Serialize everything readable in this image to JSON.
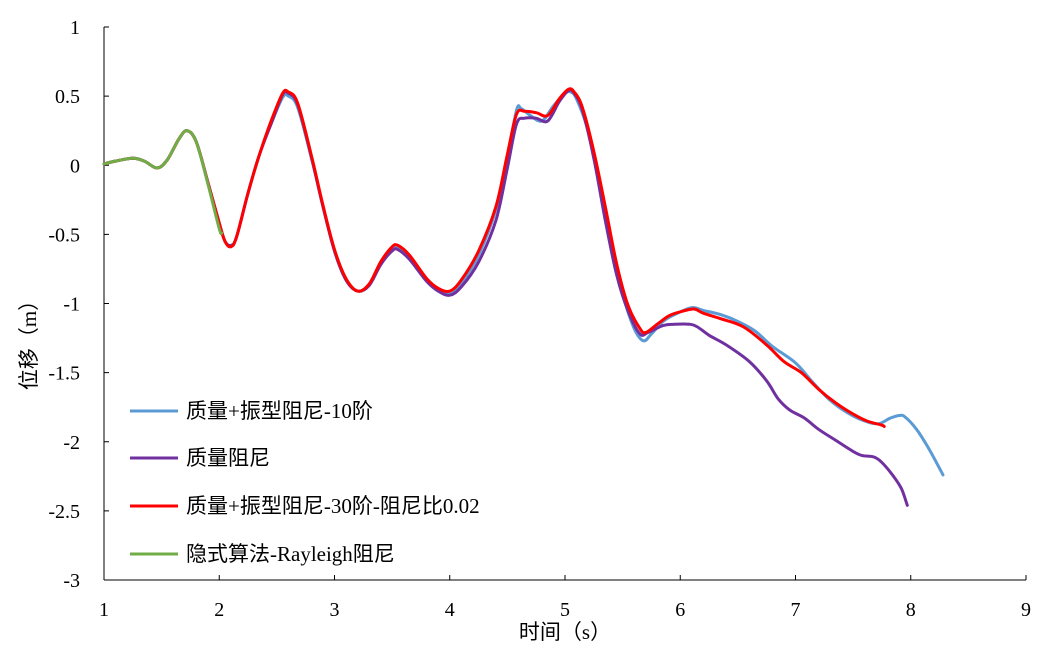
{
  "chart_data": {
    "type": "line",
    "xlabel": "时间（s）",
    "ylabel": "位移（m）",
    "xlim": [
      1,
      9
    ],
    "ylim": [
      -3,
      1
    ],
    "xticks": [
      "1",
      "2",
      "3",
      "4",
      "5",
      "6",
      "7",
      "8",
      "9"
    ],
    "yticks": [
      "1",
      "0.5",
      "0",
      "-0.5",
      "-1",
      "-1.5",
      "-2",
      "-2.5",
      "-3"
    ],
    "grid": false,
    "legend_position": "bottom-left",
    "series": [
      {
        "name": "质量+振型阻尼-10阶",
        "color": "#5b9bd5",
        "points": [
          [
            1.0,
            0.01
          ],
          [
            1.1,
            0.03
          ],
          [
            1.25,
            0.05
          ],
          [
            1.35,
            0.03
          ],
          [
            1.46,
            -0.02
          ],
          [
            1.55,
            0.04
          ],
          [
            1.65,
            0.19
          ],
          [
            1.72,
            0.25
          ],
          [
            1.8,
            0.17
          ],
          [
            1.9,
            -0.12
          ],
          [
            2.0,
            -0.42
          ],
          [
            2.05,
            -0.55
          ],
          [
            2.1,
            -0.58
          ],
          [
            2.15,
            -0.52
          ],
          [
            2.25,
            -0.2
          ],
          [
            2.35,
            0.08
          ],
          [
            2.45,
            0.3
          ],
          [
            2.55,
            0.49
          ],
          [
            2.6,
            0.5
          ],
          [
            2.68,
            0.42
          ],
          [
            2.8,
            0.05
          ],
          [
            2.9,
            -0.3
          ],
          [
            3.0,
            -0.62
          ],
          [
            3.1,
            -0.83
          ],
          [
            3.2,
            -0.91
          ],
          [
            3.3,
            -0.87
          ],
          [
            3.4,
            -0.72
          ],
          [
            3.5,
            -0.61
          ],
          [
            3.55,
            -0.6
          ],
          [
            3.65,
            -0.67
          ],
          [
            3.8,
            -0.83
          ],
          [
            3.9,
            -0.9
          ],
          [
            4.0,
            -0.92
          ],
          [
            4.1,
            -0.85
          ],
          [
            4.25,
            -0.65
          ],
          [
            4.4,
            -0.32
          ],
          [
            4.5,
            0.06
          ],
          [
            4.58,
            0.4
          ],
          [
            4.62,
            0.41
          ],
          [
            4.7,
            0.36
          ],
          [
            4.8,
            0.32
          ],
          [
            4.9,
            0.43
          ],
          [
            5.0,
            0.52
          ],
          [
            5.05,
            0.53
          ],
          [
            5.1,
            0.48
          ],
          [
            5.2,
            0.25
          ],
          [
            5.3,
            -0.15
          ],
          [
            5.4,
            -0.55
          ],
          [
            5.5,
            -0.93
          ],
          [
            5.6,
            -1.18
          ],
          [
            5.68,
            -1.27
          ],
          [
            5.75,
            -1.22
          ],
          [
            5.85,
            -1.13
          ],
          [
            5.95,
            -1.08
          ],
          [
            6.1,
            -1.03
          ],
          [
            6.2,
            -1.05
          ],
          [
            6.35,
            -1.08
          ],
          [
            6.5,
            -1.13
          ],
          [
            6.65,
            -1.2
          ],
          [
            6.8,
            -1.31
          ],
          [
            7.0,
            -1.43
          ],
          [
            7.15,
            -1.57
          ],
          [
            7.3,
            -1.7
          ],
          [
            7.45,
            -1.79
          ],
          [
            7.6,
            -1.85
          ],
          [
            7.72,
            -1.87
          ],
          [
            7.82,
            -1.83
          ],
          [
            7.9,
            -1.81
          ],
          [
            7.95,
            -1.82
          ],
          [
            8.05,
            -1.91
          ],
          [
            8.15,
            -2.04
          ],
          [
            8.28,
            -2.24
          ]
        ]
      },
      {
        "name": "质量阻尼",
        "color": "#7030a0",
        "points": [
          [
            1.0,
            0.01
          ],
          [
            1.1,
            0.03
          ],
          [
            1.25,
            0.05
          ],
          [
            1.35,
            0.03
          ],
          [
            1.46,
            -0.02
          ],
          [
            1.55,
            0.04
          ],
          [
            1.65,
            0.19
          ],
          [
            1.72,
            0.25
          ],
          [
            1.8,
            0.17
          ],
          [
            1.9,
            -0.12
          ],
          [
            2.0,
            -0.42
          ],
          [
            2.05,
            -0.55
          ],
          [
            2.1,
            -0.58
          ],
          [
            2.15,
            -0.52
          ],
          [
            2.25,
            -0.2
          ],
          [
            2.35,
            0.08
          ],
          [
            2.45,
            0.3
          ],
          [
            2.55,
            0.51
          ],
          [
            2.6,
            0.52
          ],
          [
            2.68,
            0.44
          ],
          [
            2.8,
            0.06
          ],
          [
            2.9,
            -0.3
          ],
          [
            3.0,
            -0.62
          ],
          [
            3.1,
            -0.83
          ],
          [
            3.2,
            -0.91
          ],
          [
            3.3,
            -0.87
          ],
          [
            3.4,
            -0.72
          ],
          [
            3.5,
            -0.62
          ],
          [
            3.55,
            -0.61
          ],
          [
            3.65,
            -0.68
          ],
          [
            3.8,
            -0.84
          ],
          [
            3.9,
            -0.91
          ],
          [
            4.0,
            -0.94
          ],
          [
            4.1,
            -0.88
          ],
          [
            4.25,
            -0.7
          ],
          [
            4.4,
            -0.4
          ],
          [
            4.5,
            -0.02
          ],
          [
            4.58,
            0.3
          ],
          [
            4.65,
            0.34
          ],
          [
            4.75,
            0.34
          ],
          [
            4.85,
            0.32
          ],
          [
            4.95,
            0.46
          ],
          [
            5.03,
            0.54
          ],
          [
            5.08,
            0.52
          ],
          [
            5.15,
            0.4
          ],
          [
            5.25,
            0.05
          ],
          [
            5.35,
            -0.4
          ],
          [
            5.45,
            -0.8
          ],
          [
            5.55,
            -1.06
          ],
          [
            5.65,
            -1.22
          ],
          [
            5.72,
            -1.21
          ],
          [
            5.85,
            -1.16
          ],
          [
            5.95,
            -1.15
          ],
          [
            6.08,
            -1.15
          ],
          [
            6.15,
            -1.17
          ],
          [
            6.25,
            -1.23
          ],
          [
            6.4,
            -1.3
          ],
          [
            6.6,
            -1.42
          ],
          [
            6.75,
            -1.56
          ],
          [
            6.85,
            -1.69
          ],
          [
            6.95,
            -1.77
          ],
          [
            7.08,
            -1.83
          ],
          [
            7.2,
            -1.91
          ],
          [
            7.35,
            -1.99
          ],
          [
            7.5,
            -2.07
          ],
          [
            7.58,
            -2.1
          ],
          [
            7.68,
            -2.11
          ],
          [
            7.75,
            -2.15
          ],
          [
            7.85,
            -2.25
          ],
          [
            7.92,
            -2.34
          ],
          [
            7.97,
            -2.46
          ]
        ]
      },
      {
        "name": "质量+振型阻尼-30阶-阻尼比0.02",
        "color": "#ff0000",
        "points": [
          [
            1.0,
            0.01
          ],
          [
            1.1,
            0.03
          ],
          [
            1.25,
            0.05
          ],
          [
            1.35,
            0.03
          ],
          [
            1.46,
            -0.02
          ],
          [
            1.55,
            0.04
          ],
          [
            1.65,
            0.19
          ],
          [
            1.72,
            0.25
          ],
          [
            1.8,
            0.17
          ],
          [
            1.9,
            -0.12
          ],
          [
            2.0,
            -0.42
          ],
          [
            2.05,
            -0.55
          ],
          [
            2.1,
            -0.59
          ],
          [
            2.15,
            -0.52
          ],
          [
            2.25,
            -0.2
          ],
          [
            2.35,
            0.08
          ],
          [
            2.45,
            0.32
          ],
          [
            2.55,
            0.52
          ],
          [
            2.6,
            0.53
          ],
          [
            2.68,
            0.45
          ],
          [
            2.8,
            0.07
          ],
          [
            2.9,
            -0.29
          ],
          [
            3.0,
            -0.61
          ],
          [
            3.1,
            -0.82
          ],
          [
            3.2,
            -0.91
          ],
          [
            3.3,
            -0.86
          ],
          [
            3.4,
            -0.7
          ],
          [
            3.5,
            -0.59
          ],
          [
            3.55,
            -0.58
          ],
          [
            3.65,
            -0.65
          ],
          [
            3.8,
            -0.82
          ],
          [
            3.9,
            -0.89
          ],
          [
            4.0,
            -0.91
          ],
          [
            4.1,
            -0.83
          ],
          [
            4.25,
            -0.62
          ],
          [
            4.4,
            -0.3
          ],
          [
            4.5,
            0.08
          ],
          [
            4.58,
            0.37
          ],
          [
            4.65,
            0.39
          ],
          [
            4.75,
            0.38
          ],
          [
            4.85,
            0.36
          ],
          [
            4.95,
            0.48
          ],
          [
            5.03,
            0.55
          ],
          [
            5.08,
            0.53
          ],
          [
            5.15,
            0.42
          ],
          [
            5.25,
            0.1
          ],
          [
            5.35,
            -0.3
          ],
          [
            5.45,
            -0.72
          ],
          [
            5.55,
            -1.02
          ],
          [
            5.65,
            -1.18
          ],
          [
            5.7,
            -1.21
          ],
          [
            5.8,
            -1.15
          ],
          [
            5.9,
            -1.09
          ],
          [
            6.0,
            -1.06
          ],
          [
            6.12,
            -1.04
          ],
          [
            6.2,
            -1.07
          ],
          [
            6.35,
            -1.11
          ],
          [
            6.55,
            -1.17
          ],
          [
            6.75,
            -1.3
          ],
          [
            6.9,
            -1.42
          ],
          [
            7.05,
            -1.5
          ],
          [
            7.2,
            -1.62
          ],
          [
            7.35,
            -1.72
          ],
          [
            7.5,
            -1.8
          ],
          [
            7.62,
            -1.85
          ],
          [
            7.75,
            -1.88
          ],
          [
            7.77,
            -1.89
          ]
        ]
      },
      {
        "name": "隐式算法-Rayleigh阻尼",
        "color": "#70ad47",
        "points": [
          [
            1.0,
            0.01
          ],
          [
            1.1,
            0.03
          ],
          [
            1.25,
            0.05
          ],
          [
            1.35,
            0.03
          ],
          [
            1.46,
            -0.02
          ],
          [
            1.55,
            0.04
          ],
          [
            1.65,
            0.19
          ],
          [
            1.72,
            0.25
          ],
          [
            1.8,
            0.17
          ],
          [
            1.9,
            -0.13
          ],
          [
            2.0,
            -0.46
          ],
          [
            2.02,
            -0.49
          ]
        ]
      }
    ]
  }
}
